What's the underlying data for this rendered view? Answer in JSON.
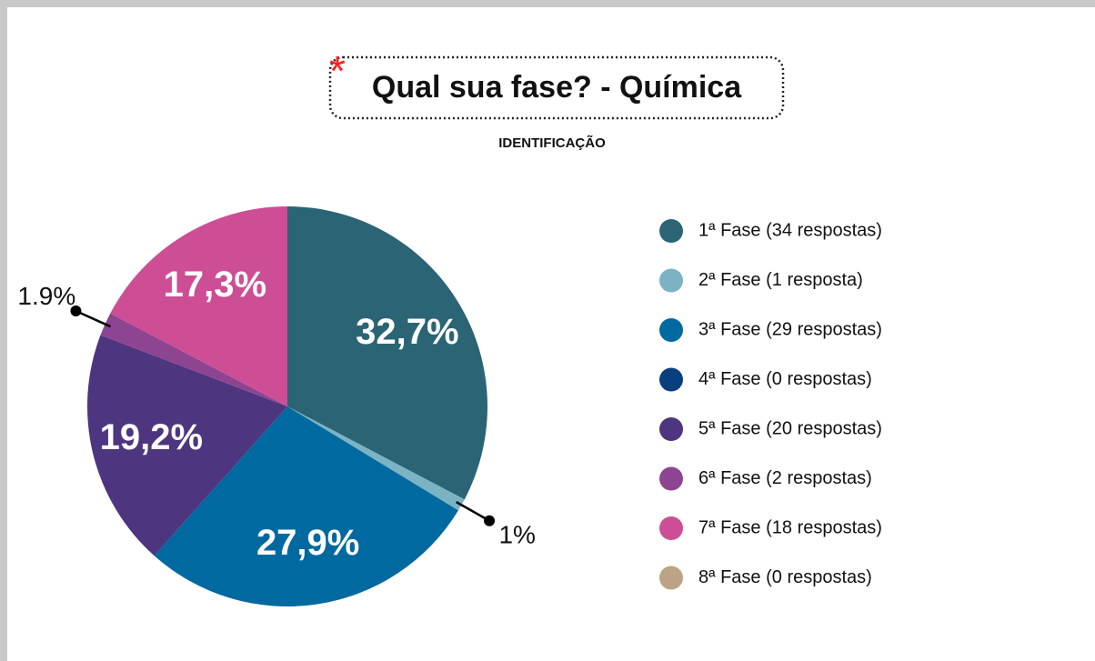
{
  "chart_data": {
    "type": "pie",
    "title_marker": "*",
    "title": "Qual sua fase? - Química",
    "subtitle": "IDENTIFICAÇÃO",
    "categories": [
      "1ª Fase (34 respostas)",
      "2ª Fase (1 resposta)",
      "3ª Fase (29 respostas)",
      "4ª Fase (0 respostas)",
      "5ª Fase (20 respostas)",
      "6ª Fase (2 respostas)",
      "7ª Fase (18 respostas)",
      "8ª Fase (0 respostas)"
    ],
    "values": [
      32.7,
      1,
      27.9,
      0,
      19.2,
      1.9,
      17.3,
      0
    ],
    "value_labels": [
      "32,7%",
      "1%",
      "27,9%",
      null,
      "19,2%",
      "1.9%",
      "17,3%",
      null
    ],
    "colors": [
      "#2a6475",
      "#7bb3c4",
      "#0069a0",
      "#093f7e",
      "#4d357f",
      "#8d4491",
      "#cd4e95",
      "#bda385"
    ],
    "legend": "right"
  }
}
